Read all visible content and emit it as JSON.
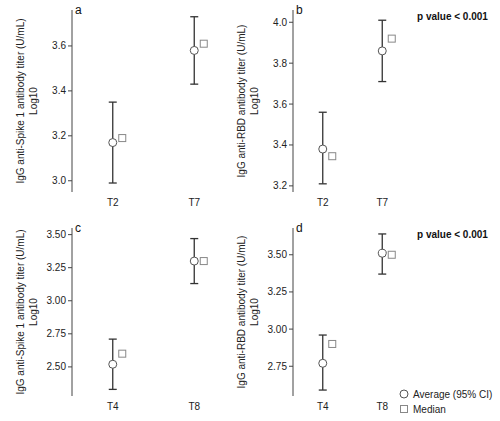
{
  "chart_data": [
    {
      "type": "errorbar",
      "title": "a",
      "y_label": [
        "IgG anti-Spike 1 antibody titer (U/mL)",
        "Log10"
      ],
      "categories": [
        "T2",
        "T7"
      ],
      "series": [
        {
          "name": "Average (95% CI)",
          "marker": "circle",
          "values": [
            3.17,
            3.58
          ],
          "ci_low": [
            2.99,
            3.43
          ],
          "ci_high": [
            3.35,
            3.73
          ]
        },
        {
          "name": "Median",
          "marker": "square",
          "values": [
            3.19,
            3.61
          ]
        }
      ],
      "ylim": [
        2.95,
        3.76
      ],
      "yticks": [
        {
          "value": 3,
          "label": "3.0"
        },
        3.2,
        3.4,
        3.6
      ]
    },
    {
      "type": "errorbar",
      "title": "b",
      "y_label": [
        "IgG anti-RBD antibody titer (U/mL)",
        "Log10"
      ],
      "categories": [
        "T2",
        "T7"
      ],
      "series": [
        {
          "name": "Average (95% CI)",
          "marker": "circle",
          "values": [
            3.38,
            3.86
          ],
          "ci_low": [
            3.21,
            3.71
          ],
          "ci_high": [
            3.56,
            4.01
          ]
        },
        {
          "name": "Median",
          "marker": "square",
          "values": [
            3.345,
            3.92
          ]
        }
      ],
      "ylim": [
        3.17,
        4.06
      ],
      "yticks": [
        3.2,
        3.4,
        3.6,
        3.8,
        {
          "value": 4,
          "label": "4.0"
        }
      ],
      "annotation": "p value < 0.001"
    },
    {
      "type": "errorbar",
      "title": "c",
      "y_label": [
        "IgG anti-Spike 1 antibody titer (U/mL)",
        "Log10"
      ],
      "categories": [
        "T4",
        "T8"
      ],
      "series": [
        {
          "name": "Average (95% CI)",
          "marker": "circle",
          "values": [
            2.52,
            3.3
          ],
          "ci_low": [
            2.33,
            3.13
          ],
          "ci_high": [
            2.71,
            3.47
          ]
        },
        {
          "name": "Median",
          "marker": "square",
          "values": [
            2.6,
            3.3
          ]
        }
      ],
      "ylim": [
        2.28,
        3.55
      ],
      "yticks": [
        {
          "value": 2.5,
          "label": "2.50"
        },
        2.75,
        {
          "value": 3,
          "label": "3.00"
        },
        3.25,
        {
          "value": 3.5,
          "label": "3.50"
        }
      ]
    },
    {
      "type": "errorbar",
      "title": "d",
      "y_label": [
        "IgG anti-RBD antibody titer (U/mL)",
        "Log10"
      ],
      "categories": [
        "T4",
        "T8"
      ],
      "series": [
        {
          "name": "Average (95% CI)",
          "marker": "circle",
          "values": [
            2.77,
            3.51
          ],
          "ci_low": [
            2.59,
            3.37
          ],
          "ci_high": [
            2.96,
            3.64
          ]
        },
        {
          "name": "Median",
          "marker": "square",
          "values": [
            2.9,
            3.5
          ]
        }
      ],
      "ylim": [
        2.55,
        3.68
      ],
      "yticks": [
        2.75,
        {
          "value": 3,
          "label": "3.00"
        },
        3.25,
        {
          "value": 3.5,
          "label": "3.50"
        }
      ],
      "annotation": "p value < 0.001",
      "legend": "lower-right"
    }
  ]
}
